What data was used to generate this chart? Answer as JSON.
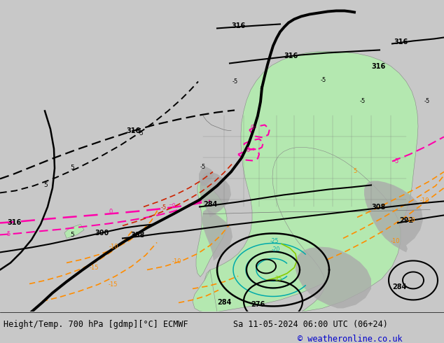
{
  "title_left": "Height/Temp. 700 hPa [gdmp][°C] ECMWF",
  "title_right": "Sa 11-05-2024 06:00 UTC (06+24)",
  "copyright": "© weatheronline.co.uk",
  "bg_color": "#c8c8c8",
  "land_color": "#b4e8b0",
  "fig_width": 6.34,
  "fig_height": 4.9,
  "dpi": 100,
  "caption_fontsize": 8.5,
  "copyright_color": "#0000CC",
  "orange": "#FF8C00",
  "pink": "#FF00AA",
  "red": "#CC2200",
  "teal": "#00AAAA",
  "lime": "#88CC00",
  "black": "#000000"
}
